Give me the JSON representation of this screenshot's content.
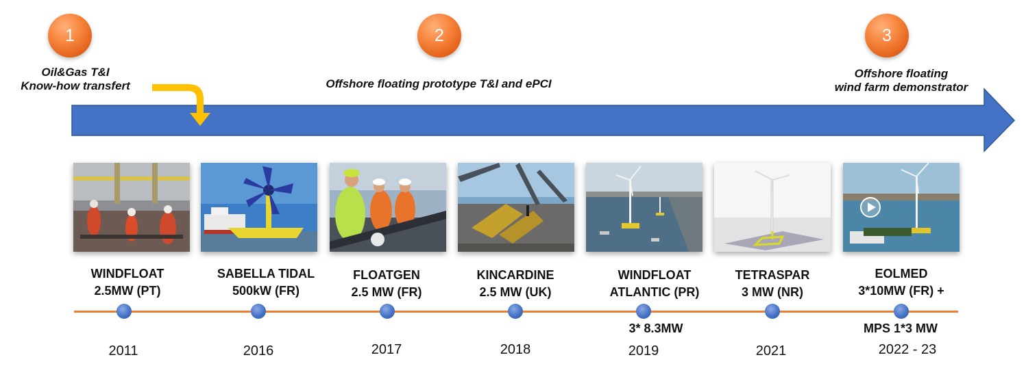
{
  "phases": [
    {
      "number": "1",
      "label_lines": [
        "Oil&Gas T&I",
        "Know-how transfert"
      ]
    },
    {
      "number": "2",
      "label_lines": [
        "Offshore floating prototype T&I and ePCI"
      ]
    },
    {
      "number": "3",
      "label_lines": [
        "Offshore floating",
        "wind farm demonstrator"
      ]
    }
  ],
  "projects": [
    {
      "name_lines": [
        "WINDFLOAT",
        "2.5MW (PT)"
      ],
      "extra": "",
      "year": "2011",
      "photo": "offshore-workers-photo"
    },
    {
      "name_lines": [
        "SABELLA TIDAL",
        "500kW (FR)"
      ],
      "extra": "",
      "year": "2016",
      "photo": "tidal-turbine-photo"
    },
    {
      "name_lines": [
        "FLOATGEN",
        "2.5 MW (FR)"
      ],
      "extra": "",
      "year": "2017",
      "photo": "crew-cable-photo"
    },
    {
      "name_lines": [
        "KINCARDINE",
        "2.5 MW (UK)"
      ],
      "extra": "",
      "year": "2018",
      "photo": "deck-anchor-photo"
    },
    {
      "name_lines": [
        "WINDFLOAT",
        "ATLANTIC (PR)"
      ],
      "extra": "3* 8.3MW",
      "year": "2019",
      "photo": "harbor-turbines-photo"
    },
    {
      "name_lines": [
        "TETRASPAR",
        "3 MW (NR)"
      ],
      "extra": "",
      "year": "2021",
      "photo": "tetraspar-render-photo"
    },
    {
      "name_lines": [
        "EOLMED",
        "3*10MW (FR) +"
      ],
      "extra": "MPS 1*3 MW",
      "year": "2022 - 23",
      "photo": "eolmed-video-photo"
    }
  ],
  "colors": {
    "arrow": "#4472c4",
    "timeline": "#ed7d31",
    "badge": "#f7873f",
    "bent_arrow": "#ffc000"
  }
}
